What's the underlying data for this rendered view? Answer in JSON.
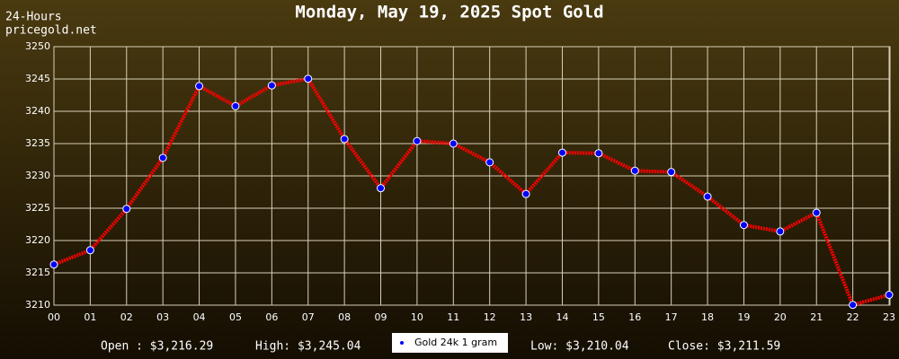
{
  "chart_data": {
    "type": "line",
    "title": "Monday, May 19, 2025 Spot Gold",
    "period_label": "24-Hours",
    "source": "pricegold.net",
    "categories": [
      "00",
      "01",
      "02",
      "03",
      "04",
      "05",
      "06",
      "07",
      "08",
      "09",
      "10",
      "11",
      "12",
      "13",
      "14",
      "15",
      "16",
      "17",
      "18",
      "19",
      "20",
      "21",
      "22",
      "23"
    ],
    "series": [
      {
        "name": "Gold 24k 1 gram",
        "color": "#ff0000",
        "marker_color": "#0000ff",
        "values": [
          3216.29,
          3218.5,
          3224.9,
          3232.8,
          3243.9,
          3240.8,
          3244.0,
          3245.04,
          3235.7,
          3228.1,
          3235.4,
          3235.0,
          3232.1,
          3227.2,
          3233.6,
          3233.5,
          3230.8,
          3230.6,
          3226.8,
          3222.4,
          3221.4,
          3224.3,
          3210.04,
          3211.59
        ]
      }
    ],
    "ylim": [
      3210,
      3250
    ],
    "yticks": [
      3210,
      3215,
      3220,
      3225,
      3230,
      3235,
      3240,
      3245,
      3250
    ],
    "grid": true,
    "summary": [
      "Open : $3,216.29",
      "High: $3,245.04",
      "Low: $3,210.04",
      "Close: $3,211.59"
    ]
  }
}
